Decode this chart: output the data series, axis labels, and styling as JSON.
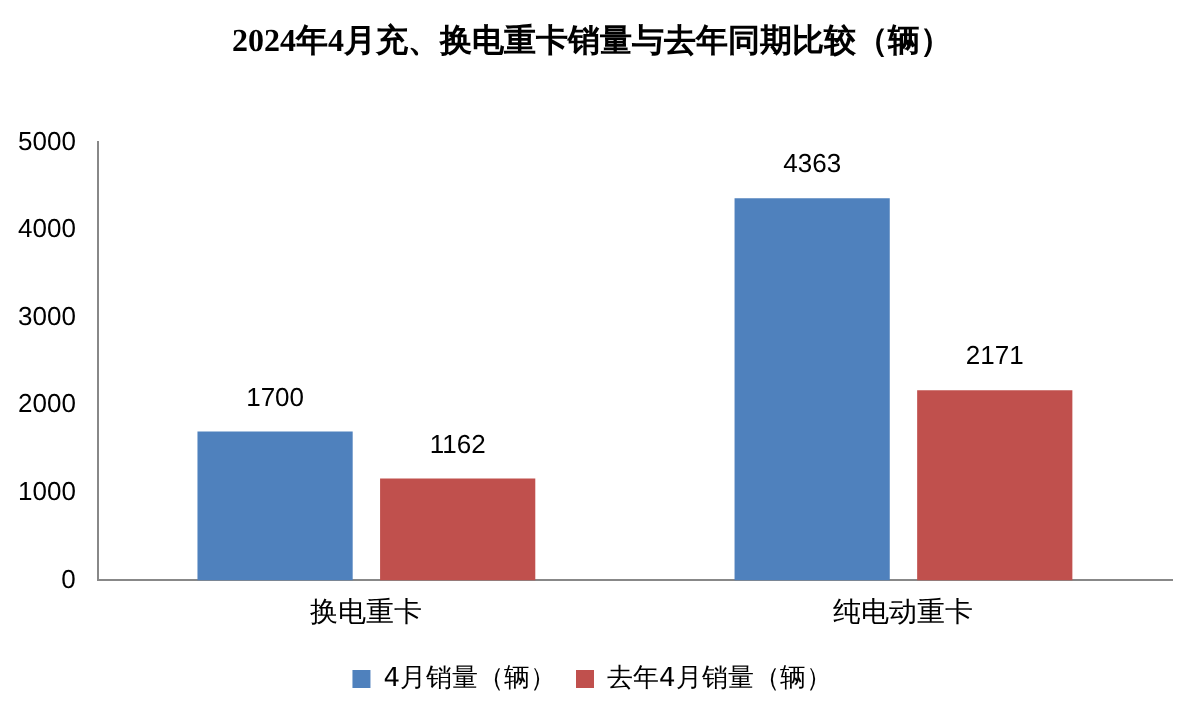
{
  "chart_data": {
    "type": "bar",
    "title": "2024年4月充、换电重卡销量与去年同期比较（辆）",
    "categories": [
      "换电重卡",
      "纯电动重卡"
    ],
    "series": [
      {
        "name": "4月销量（辆）",
        "color": "#4f81bd",
        "values": [
          1700,
          4363
        ]
      },
      {
        "name": "去年4月销量（辆）",
        "color": "#c0504d",
        "values": [
          1162,
          2171
        ]
      }
    ],
    "ylim": [
      0,
      5000
    ],
    "yticks": [
      0,
      1000,
      2000,
      3000,
      4000,
      5000
    ],
    "grid": false,
    "legend": "bottom",
    "data_labels": true
  }
}
